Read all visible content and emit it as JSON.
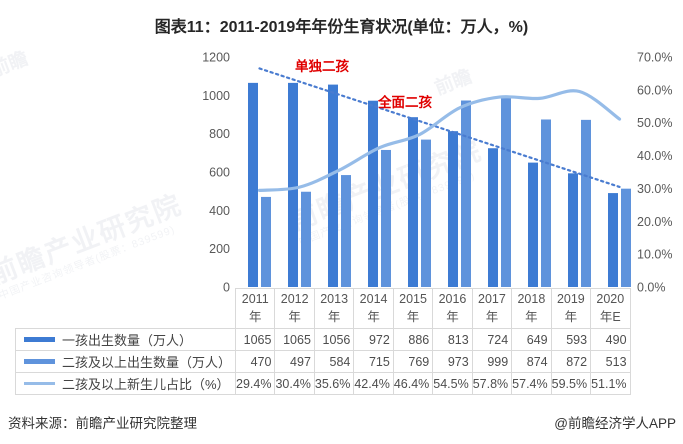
{
  "title": "图表11：2011-2019年年份生育状况(单位：万人，%)",
  "source_note": "资料来源：前瞻产业研究院整理",
  "credit": "@前瞻经济学人APP",
  "watermarks": {
    "brand": "前瞻产业研究院",
    "tagline": "中国产业咨询领导者(股票：839599)",
    "logo": "前瞻"
  },
  "chart_data": {
    "type": "bar",
    "title": "图表11：2011-2019年年份生育状况(单位：万人，%)",
    "categories": [
      [
        "2011",
        "年"
      ],
      [
        "2012",
        "年"
      ],
      [
        "2013",
        "年"
      ],
      [
        "2014",
        "年"
      ],
      [
        "2015",
        "年"
      ],
      [
        "2016",
        "年"
      ],
      [
        "2017",
        "年"
      ],
      [
        "2018",
        "年"
      ],
      [
        "2019",
        "年"
      ],
      [
        "2020",
        "年E"
      ]
    ],
    "series": [
      {
        "name": "一孩出生数量（万人）",
        "type": "bar",
        "axis": "left",
        "color": "#3d7bd3",
        "values": [
          1065,
          1065,
          1056,
          972,
          886,
          813,
          724,
          649,
          593,
          490
        ]
      },
      {
        "name": "二孩及以上出生数量（万人）",
        "type": "bar",
        "axis": "left",
        "color": "#5f93dc",
        "values": [
          470,
          497,
          584,
          715,
          769,
          973,
          999,
          874,
          872,
          513
        ]
      },
      {
        "name": "二孩及以上新生儿占比（%）",
        "type": "line",
        "axis": "right",
        "color": "#96bce8",
        "values": [
          29.4,
          30.4,
          35.6,
          42.4,
          46.4,
          54.5,
          57.8,
          57.4,
          59.5,
          51.1
        ]
      }
    ],
    "left_axis": {
      "min": 0,
      "max": 1200,
      "labels": [
        "1200",
        "1000",
        "800",
        "600",
        "400",
        "200",
        "0"
      ]
    },
    "right_axis": {
      "min": 0,
      "max": 70,
      "labels": [
        "70.0%",
        "60.0%",
        "50.0%",
        "40.0%",
        "30.0%",
        "20.0%",
        "10.0%",
        "0.0%"
      ]
    },
    "trendline": {
      "series": 0,
      "style": "dotted",
      "color": "#4a7cd0"
    },
    "annotations": [
      {
        "text": "单独二孩",
        "x": 322,
        "y": 67,
        "color": "#e00000"
      },
      {
        "text": "全面二孩",
        "x": 405,
        "y": 103,
        "color": "#e00000"
      }
    ],
    "grid": false,
    "legend_position": "table-left"
  }
}
